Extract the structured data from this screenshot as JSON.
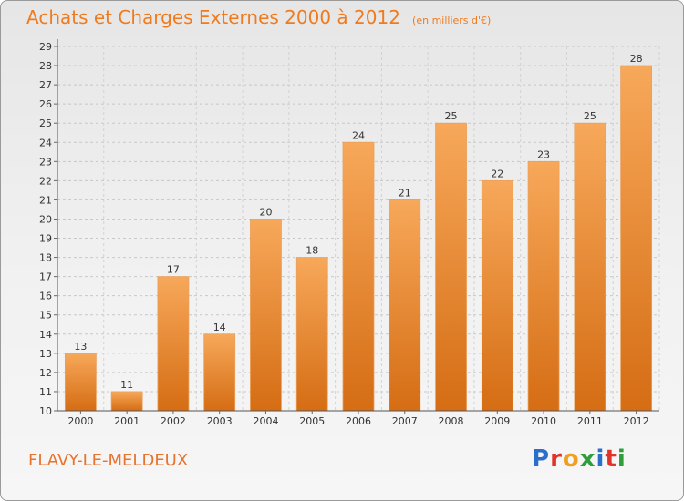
{
  "header": {
    "title": "Achats et Charges Externes 2000 à 2012",
    "subtitle": "(en milliers d'€)"
  },
  "footer": {
    "commune": "FLAVY-LE-MELDEUX",
    "logo_letters": [
      "P",
      "r",
      "o",
      "x",
      "i",
      "t",
      "i"
    ],
    "logo_colors": [
      "#2a6fc9",
      "#e0342a",
      "#f0a020",
      "#2e9e3a",
      "#2a6fc9",
      "#e0342a",
      "#2e9e3a"
    ]
  },
  "colors": {
    "bar_top": "#f7a85a",
    "bar_bottom": "#d56d14",
    "title": "#f07a1e"
  },
  "chart_data": {
    "type": "bar",
    "title": "Achats et Charges Externes 2000 à 2012",
    "subtitle": "(en milliers d'€)",
    "xlabel": "",
    "ylabel": "",
    "categories": [
      "2000",
      "2001",
      "2002",
      "2003",
      "2004",
      "2005",
      "2006",
      "2007",
      "2008",
      "2009",
      "2010",
      "2011",
      "2012"
    ],
    "values": [
      13,
      11,
      17,
      14,
      20,
      18,
      24,
      21,
      25,
      22,
      23,
      25,
      28
    ],
    "ylim": [
      10,
      29
    ],
    "yticks": [
      10,
      11,
      12,
      13,
      14,
      15,
      16,
      17,
      18,
      19,
      20,
      21,
      22,
      23,
      24,
      25,
      26,
      27,
      28,
      29
    ],
    "grid": true,
    "legend": "none"
  }
}
